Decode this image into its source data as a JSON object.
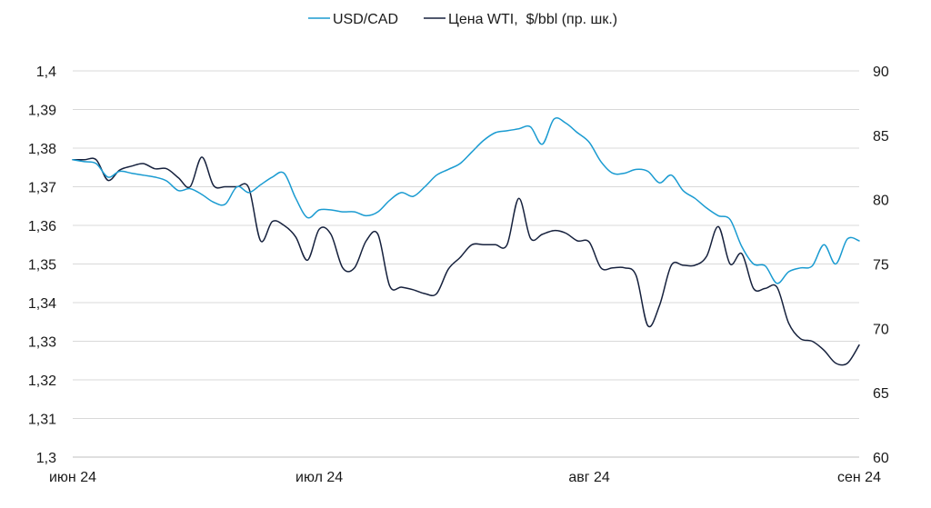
{
  "chart_data": {
    "type": "line",
    "title": "",
    "legend": {
      "position": "top-center",
      "entries": [
        {
          "name": "USD/CAD",
          "color": "#1a9bd1"
        },
        {
          "name": "Цена WTI,  $/bbl (пр. шк.)",
          "color": "#16213d"
        }
      ]
    },
    "grid": true,
    "x": {
      "ticks": [
        "июн 24",
        "июл 24",
        "авг 24",
        "сен 24"
      ],
      "tick_index": [
        0,
        21,
        44,
        67
      ],
      "n_points": 68
    },
    "y_left": {
      "lim": [
        1.3,
        1.4
      ],
      "ticks": [
        "1,4",
        "1,39",
        "1,38",
        "1,37",
        "1,36",
        "1,35",
        "1,34",
        "1,33",
        "1,32",
        "1,31",
        "1,3"
      ],
      "tick_values": [
        1.4,
        1.39,
        1.38,
        1.37,
        1.36,
        1.35,
        1.34,
        1.33,
        1.32,
        1.31,
        1.3
      ]
    },
    "y_right": {
      "lim": [
        60,
        90
      ],
      "ticks": [
        "90",
        "85",
        "80",
        "75",
        "70",
        "65",
        "60"
      ],
      "tick_values": [
        90,
        85,
        80,
        75,
        70,
        65,
        60
      ]
    },
    "series": [
      {
        "name": "USD/CAD",
        "axis": "left",
        "color": "#1a9bd1",
        "values": [
          1.377,
          1.3765,
          1.376,
          1.3725,
          1.374,
          1.3735,
          1.373,
          1.3725,
          1.3715,
          1.369,
          1.3695,
          1.368,
          1.366,
          1.3655,
          1.37,
          1.3685,
          1.3705,
          1.3725,
          1.3735,
          1.367,
          1.362,
          1.364,
          1.364,
          1.3635,
          1.3635,
          1.3625,
          1.3635,
          1.3665,
          1.3685,
          1.3675,
          1.37,
          1.373,
          1.3745,
          1.376,
          1.379,
          1.382,
          1.384,
          1.3845,
          1.385,
          1.3855,
          1.381,
          1.3875,
          1.3865,
          1.384,
          1.3815,
          1.3765,
          1.3735,
          1.3735,
          1.3745,
          1.374,
          1.371,
          1.373,
          1.369,
          1.367,
          1.3645,
          1.3625,
          1.3615,
          1.3545,
          1.35,
          1.3495,
          1.345,
          1.348,
          1.349,
          1.3495,
          1.355,
          1.35,
          1.3565,
          1.356
        ]
      },
      {
        "name": "Цена WTI,  $/bbl (пр. шк.)",
        "axis": "right",
        "color": "#16213d",
        "values": [
          83.1,
          83.1,
          83.1,
          81.5,
          82.3,
          82.6,
          82.8,
          82.4,
          82.4,
          81.7,
          81.0,
          83.3,
          81.1,
          81.0,
          81.0,
          80.9,
          76.8,
          78.3,
          78.0,
          77.1,
          75.3,
          77.7,
          77.3,
          74.7,
          74.7,
          76.8,
          77.3,
          73.3,
          73.2,
          73.0,
          72.7,
          72.7,
          74.6,
          75.5,
          76.5,
          76.5,
          76.5,
          76.5,
          80.1,
          77.0,
          77.3,
          77.6,
          77.4,
          76.8,
          76.7,
          74.7,
          74.7,
          74.7,
          74.1,
          70.2,
          71.8,
          74.9,
          74.9,
          74.9,
          75.6,
          77.9,
          75.0,
          75.8,
          73.1,
          73.1,
          73.2,
          70.4,
          69.2,
          69.0,
          68.3,
          67.3,
          67.3,
          68.7
        ]
      }
    ]
  }
}
